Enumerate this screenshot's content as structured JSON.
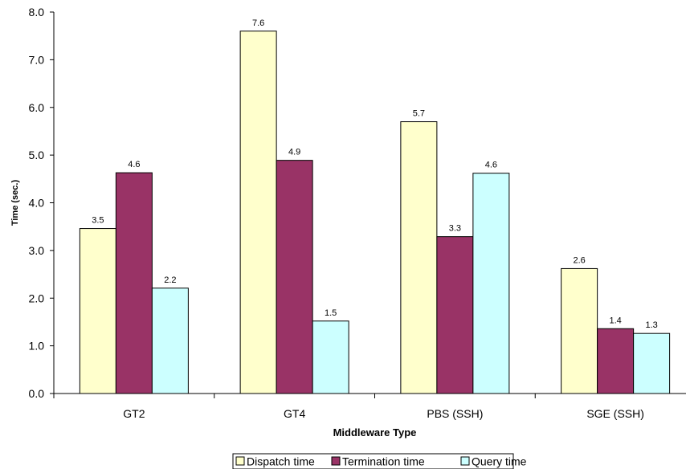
{
  "chart_data": {
    "type": "bar",
    "categories": [
      "GT2",
      "GT4",
      "PBS (SSH)",
      "SGE (SSH)"
    ],
    "series": [
      {
        "name": "Dispatch time",
        "values": [
          3.46,
          7.6,
          5.7,
          2.62
        ],
        "labels": [
          "3.5",
          "7.6",
          "5.7",
          "2.6"
        ],
        "color": "#FFFFCC"
      },
      {
        "name": "Termination time",
        "values": [
          4.63,
          4.89,
          3.29,
          1.36
        ],
        "labels": [
          "4.6",
          "4.9",
          "3.3",
          "1.4"
        ],
        "color": "#993366"
      },
      {
        "name": "Query time",
        "values": [
          2.21,
          1.52,
          4.62,
          1.26
        ],
        "labels": [
          "2.2",
          "1.5",
          "4.6",
          "1.3"
        ],
        "color": "#CCFFFF"
      }
    ],
    "title": "",
    "xlabel": "Middleware Type",
    "ylabel": "Time (sec.)",
    "ylim": [
      0,
      8
    ],
    "yticks": [
      "0.0",
      "1.0",
      "2.0",
      "3.0",
      "4.0",
      "5.0",
      "6.0",
      "7.0",
      "8.0"
    ],
    "grid": false,
    "legend_position": "bottom"
  }
}
